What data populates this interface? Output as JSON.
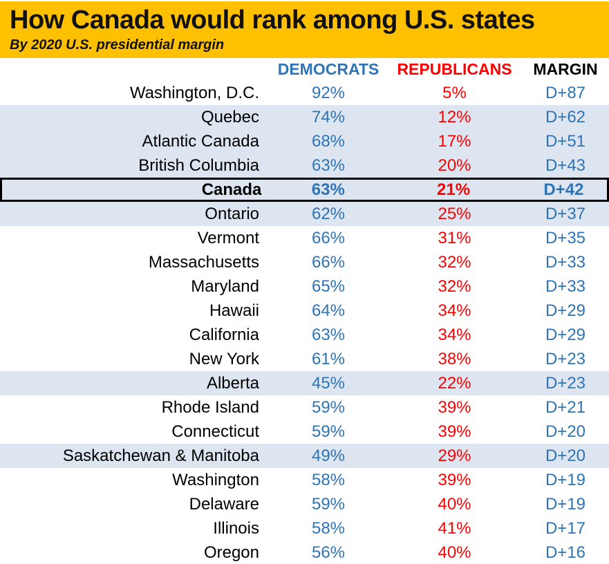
{
  "banner": {
    "title": "How Canada would rank among U.S. states",
    "subtitle": "By 2020 U.S. presidential margin"
  },
  "table_header": {
    "democrats": "DEMOCRATS",
    "republicans": "REPUBLICANS",
    "margin": "MARGIN"
  },
  "colors": {
    "banner": "#FFC000",
    "highlight_row": "#DCE5F0",
    "democrat_text": "#2E74B5",
    "republican_text": "#FF0000",
    "margin_text": "#2E74B5",
    "title_text": "#111111"
  },
  "chart_data": {
    "type": "table",
    "title": "How Canada would rank among U.S. states",
    "subtitle": "By 2020 U.S. presidential margin",
    "columns": [
      "DEMOCRATS",
      "REPUBLICANS",
      "MARGIN"
    ],
    "rows": [
      {
        "name": "Washington, D.C.",
        "democrats": "92%",
        "republicans": "5%",
        "margin": "D+87",
        "highlighted": false,
        "emphasized": false
      },
      {
        "name": "Quebec",
        "democrats": "74%",
        "republicans": "12%",
        "margin": "D+62",
        "highlighted": true,
        "emphasized": false
      },
      {
        "name": "Atlantic Canada",
        "democrats": "68%",
        "republicans": "17%",
        "margin": "D+51",
        "highlighted": true,
        "emphasized": false
      },
      {
        "name": "British Columbia",
        "democrats": "63%",
        "republicans": "20%",
        "margin": "D+43",
        "highlighted": true,
        "emphasized": false
      },
      {
        "name": "Canada",
        "democrats": "63%",
        "republicans": "21%",
        "margin": "D+42",
        "highlighted": true,
        "emphasized": true
      },
      {
        "name": "Ontario",
        "democrats": "62%",
        "republicans": "25%",
        "margin": "D+37",
        "highlighted": true,
        "emphasized": false
      },
      {
        "name": "Vermont",
        "democrats": "66%",
        "republicans": "31%",
        "margin": "D+35",
        "highlighted": false,
        "emphasized": false
      },
      {
        "name": "Massachusetts",
        "democrats": "66%",
        "republicans": "32%",
        "margin": "D+33",
        "highlighted": false,
        "emphasized": false
      },
      {
        "name": "Maryland",
        "democrats": "65%",
        "republicans": "32%",
        "margin": "D+33",
        "highlighted": false,
        "emphasized": false
      },
      {
        "name": "Hawaii",
        "democrats": "64%",
        "republicans": "34%",
        "margin": "D+29",
        "highlighted": false,
        "emphasized": false
      },
      {
        "name": "California",
        "democrats": "63%",
        "republicans": "34%",
        "margin": "D+29",
        "highlighted": false,
        "emphasized": false
      },
      {
        "name": "New York",
        "democrats": "61%",
        "republicans": "38%",
        "margin": "D+23",
        "highlighted": false,
        "emphasized": false
      },
      {
        "name": "Alberta",
        "democrats": "45%",
        "republicans": "22%",
        "margin": "D+23",
        "highlighted": true,
        "emphasized": false
      },
      {
        "name": "Rhode Island",
        "democrats": "59%",
        "republicans": "39%",
        "margin": "D+21",
        "highlighted": false,
        "emphasized": false
      },
      {
        "name": "Connecticut",
        "democrats": "59%",
        "republicans": "39%",
        "margin": "D+20",
        "highlighted": false,
        "emphasized": false
      },
      {
        "name": "Saskatchewan & Manitoba",
        "democrats": "49%",
        "republicans": "29%",
        "margin": "D+20",
        "highlighted": true,
        "emphasized": false
      },
      {
        "name": "Washington",
        "democrats": "58%",
        "republicans": "39%",
        "margin": "D+19",
        "highlighted": false,
        "emphasized": false
      },
      {
        "name": "Delaware",
        "democrats": "59%",
        "republicans": "40%",
        "margin": "D+19",
        "highlighted": false,
        "emphasized": false
      },
      {
        "name": "Illinois",
        "democrats": "58%",
        "republicans": "41%",
        "margin": "D+17",
        "highlighted": false,
        "emphasized": false
      },
      {
        "name": "Oregon",
        "democrats": "56%",
        "republicans": "40%",
        "margin": "D+16",
        "highlighted": false,
        "emphasized": false
      }
    ]
  }
}
